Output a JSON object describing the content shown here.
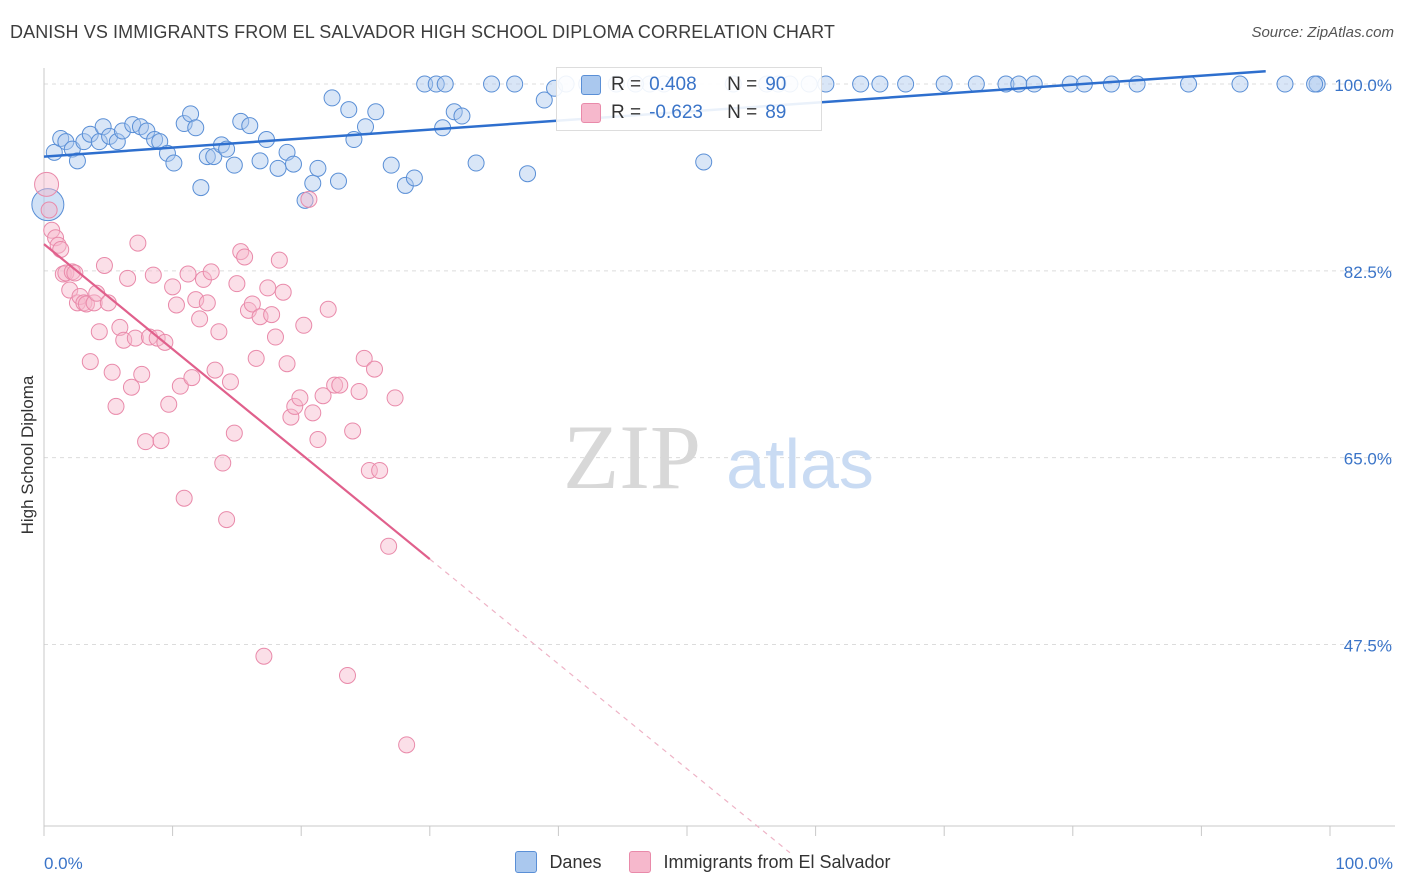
{
  "title": "DANISH VS IMMIGRANTS FROM EL SALVADOR HIGH SCHOOL DIPLOMA CORRELATION CHART",
  "source": "Source: ZipAtlas.com",
  "watermark": {
    "zip": "ZIP",
    "atlas": "atlas"
  },
  "colors": {
    "blue_fill": "#aac8ee",
    "blue_stroke": "#5a8fd6",
    "blue_line": "#2e6fce",
    "pink_fill": "#f6b8cc",
    "pink_stroke": "#e98aaa",
    "pink_line": "#e0608c",
    "tick_label": "#3a74c8"
  },
  "legend": {
    "rows": [
      {
        "r_label": "R =",
        "r_value": "0.408",
        "n_label": "N =",
        "n_value": "90"
      },
      {
        "r_label": "R =",
        "r_value": "-0.623",
        "n_label": "N =",
        "n_value": "89"
      }
    ]
  },
  "chart_data": {
    "type": "scatter",
    "title": "DANISH VS IMMIGRANTS FROM EL SALVADOR HIGH SCHOOL DIPLOMA CORRELATION CHART",
    "xlabel": "",
    "ylabel": "High School Diploma",
    "xlim": [
      0,
      100
    ],
    "ylim": [
      30.5,
      101.5
    ],
    "x_tick_labels": [
      "0.0%",
      "100.0%"
    ],
    "y_ticks": [
      47.5,
      65.0,
      82.5,
      100.0
    ],
    "y_tick_labels": [
      "47.5%",
      "65.0%",
      "82.5%",
      "100.0%"
    ],
    "grid": true,
    "legend_position": "bottom-center",
    "series": [
      {
        "name": "Danes",
        "color": "#aac8ee",
        "regression": {
          "x": [
            0.0,
            95.0
          ],
          "y": [
            93.2,
            101.2
          ]
        },
        "points": [
          [
            0.3,
            88.7
          ],
          [
            0.8,
            93.6
          ],
          [
            1.3,
            94.9
          ],
          [
            1.7,
            94.6
          ],
          [
            2.2,
            93.9
          ],
          [
            2.6,
            92.8
          ],
          [
            3.1,
            94.6
          ],
          [
            3.6,
            95.3
          ],
          [
            4.3,
            94.6
          ],
          [
            4.6,
            96.0
          ],
          [
            5.1,
            95.1
          ],
          [
            5.7,
            94.6
          ],
          [
            6.1,
            95.6
          ],
          [
            6.9,
            96.2
          ],
          [
            7.5,
            96.0
          ],
          [
            8.0,
            95.6
          ],
          [
            8.6,
            94.8
          ],
          [
            9.0,
            94.6
          ],
          [
            9.6,
            93.5
          ],
          [
            10.1,
            92.6
          ],
          [
            10.9,
            96.3
          ],
          [
            11.4,
            97.2
          ],
          [
            11.8,
            95.9
          ],
          [
            12.2,
            90.3
          ],
          [
            12.7,
            93.2
          ],
          [
            13.2,
            93.2
          ],
          [
            13.8,
            94.3
          ],
          [
            14.2,
            93.9
          ],
          [
            14.8,
            92.4
          ],
          [
            15.3,
            96.5
          ],
          [
            16.0,
            96.1
          ],
          [
            16.8,
            92.8
          ],
          [
            17.3,
            94.8
          ],
          [
            18.2,
            92.1
          ],
          [
            18.9,
            93.6
          ],
          [
            19.4,
            92.5
          ],
          [
            20.3,
            89.1
          ],
          [
            20.9,
            90.7
          ],
          [
            21.3,
            92.1
          ],
          [
            22.4,
            98.7
          ],
          [
            22.9,
            90.9
          ],
          [
            23.7,
            97.6
          ],
          [
            24.1,
            94.8
          ],
          [
            25.0,
            96.0
          ],
          [
            25.8,
            97.4
          ],
          [
            27.0,
            92.4
          ],
          [
            28.1,
            90.5
          ],
          [
            28.8,
            91.2
          ],
          [
            29.6,
            100.0
          ],
          [
            30.5,
            100.0
          ],
          [
            31.2,
            100.0
          ],
          [
            31.9,
            97.4
          ],
          [
            32.5,
            97.0
          ],
          [
            33.6,
            92.6
          ],
          [
            34.8,
            100.0
          ],
          [
            36.6,
            100.0
          ],
          [
            37.6,
            91.6
          ],
          [
            38.9,
            98.5
          ],
          [
            39.7,
            99.6
          ],
          [
            40.6,
            100.0
          ],
          [
            42.2,
            100.0
          ],
          [
            44.5,
            100.0
          ],
          [
            47.1,
            100.0
          ],
          [
            48.2,
            100.0
          ],
          [
            51.3,
            92.7
          ],
          [
            56.2,
            100.0
          ],
          [
            57.1,
            100.0
          ],
          [
            58.0,
            100.0
          ],
          [
            59.5,
            100.0
          ],
          [
            63.5,
            100.0
          ],
          [
            65.0,
            100.0
          ],
          [
            67.0,
            100.0
          ],
          [
            70.0,
            100.0
          ],
          [
            74.8,
            100.0
          ],
          [
            75.8,
            100.0
          ],
          [
            77.0,
            100.0
          ],
          [
            79.8,
            100.0
          ],
          [
            80.9,
            100.0
          ],
          [
            89.0,
            100.0
          ],
          [
            99.0,
            100.0
          ],
          [
            98.8,
            100.0
          ],
          [
            96.5,
            100.0
          ],
          [
            93.0,
            100.0
          ],
          [
            85.0,
            100.0
          ],
          [
            83.0,
            100.0
          ],
          [
            72.5,
            100.0
          ],
          [
            53.6,
            100.0
          ],
          [
            46.0,
            100.0
          ],
          [
            60.8,
            100.0
          ],
          [
            31.0,
            95.9
          ]
        ]
      },
      {
        "name": "Immigrants from El Salvador",
        "color": "#f6b8cc",
        "regression": {
          "x": [
            0.0,
            30.0
          ],
          "y": [
            85.0,
            55.5
          ]
        },
        "regression_dashed": {
          "x": [
            30.0,
            58.0
          ],
          "y": [
            55.5,
            28.0
          ]
        },
        "points": [
          [
            0.2,
            90.6
          ],
          [
            0.4,
            88.2
          ],
          [
            0.6,
            86.3
          ],
          [
            0.9,
            85.6
          ],
          [
            1.1,
            84.9
          ],
          [
            1.3,
            84.5
          ],
          [
            1.5,
            82.2
          ],
          [
            1.7,
            82.3
          ],
          [
            2.0,
            80.7
          ],
          [
            2.2,
            82.4
          ],
          [
            2.4,
            82.3
          ],
          [
            2.6,
            79.5
          ],
          [
            2.8,
            80.1
          ],
          [
            3.1,
            79.5
          ],
          [
            3.3,
            79.4
          ],
          [
            3.6,
            74.0
          ],
          [
            3.9,
            79.5
          ],
          [
            4.1,
            80.4
          ],
          [
            4.3,
            76.8
          ],
          [
            4.7,
            83.0
          ],
          [
            5.0,
            79.5
          ],
          [
            5.3,
            73.0
          ],
          [
            5.6,
            69.8
          ],
          [
            5.9,
            77.2
          ],
          [
            6.2,
            76.0
          ],
          [
            6.5,
            81.8
          ],
          [
            6.8,
            71.6
          ],
          [
            7.1,
            76.2
          ],
          [
            7.3,
            85.1
          ],
          [
            7.6,
            72.8
          ],
          [
            7.9,
            66.5
          ],
          [
            8.2,
            76.3
          ],
          [
            8.5,
            82.1
          ],
          [
            8.8,
            76.2
          ],
          [
            9.1,
            66.6
          ],
          [
            9.4,
            75.8
          ],
          [
            9.7,
            70.0
          ],
          [
            10.0,
            81.0
          ],
          [
            10.3,
            79.3
          ],
          [
            10.6,
            71.7
          ],
          [
            10.9,
            61.2
          ],
          [
            11.2,
            82.2
          ],
          [
            11.5,
            72.5
          ],
          [
            11.8,
            79.8
          ],
          [
            12.1,
            78.0
          ],
          [
            12.4,
            81.7
          ],
          [
            12.7,
            79.5
          ],
          [
            13.0,
            82.4
          ],
          [
            13.3,
            73.2
          ],
          [
            13.6,
            76.8
          ],
          [
            13.9,
            64.5
          ],
          [
            14.2,
            59.2
          ],
          [
            14.5,
            72.1
          ],
          [
            14.8,
            67.3
          ],
          [
            15.0,
            81.3
          ],
          [
            15.3,
            84.3
          ],
          [
            15.6,
            83.8
          ],
          [
            15.9,
            78.8
          ],
          [
            16.2,
            79.4
          ],
          [
            16.5,
            74.3
          ],
          [
            16.8,
            78.2
          ],
          [
            17.1,
            46.4
          ],
          [
            17.4,
            80.9
          ],
          [
            17.7,
            78.4
          ],
          [
            18.0,
            76.3
          ],
          [
            18.3,
            83.5
          ],
          [
            18.6,
            80.5
          ],
          [
            18.9,
            73.8
          ],
          [
            19.2,
            68.8
          ],
          [
            19.5,
            69.8
          ],
          [
            19.9,
            70.6
          ],
          [
            20.2,
            77.4
          ],
          [
            20.6,
            89.2
          ],
          [
            20.9,
            69.2
          ],
          [
            21.3,
            66.7
          ],
          [
            21.7,
            70.8
          ],
          [
            22.1,
            78.9
          ],
          [
            22.6,
            71.8
          ],
          [
            23.0,
            71.8
          ],
          [
            23.6,
            44.6
          ],
          [
            24.0,
            67.5
          ],
          [
            24.5,
            71.2
          ],
          [
            24.9,
            74.3
          ],
          [
            25.3,
            63.8
          ],
          [
            25.7,
            73.3
          ],
          [
            26.1,
            63.8
          ],
          [
            26.8,
            56.7
          ],
          [
            27.3,
            70.6
          ],
          [
            28.2,
            38.1
          ]
        ]
      }
    ]
  },
  "bottom_legend": [
    {
      "label": "Danes"
    },
    {
      "label": "Immigrants from El Salvador"
    }
  ]
}
